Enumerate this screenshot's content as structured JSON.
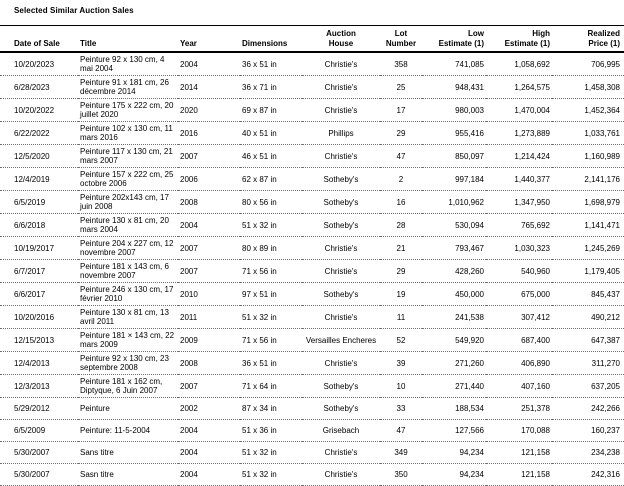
{
  "page": {
    "title": "Selected Similar Auction Sales"
  },
  "table": {
    "columns": [
      {
        "label": "Date of Sale",
        "align": "left"
      },
      {
        "label": "Title",
        "align": "left"
      },
      {
        "label": "Year",
        "align": "left"
      },
      {
        "label": "Dimensions",
        "align": "left"
      },
      {
        "label": "Auction\nHouse",
        "align": "center"
      },
      {
        "label": "Lot\nNumber",
        "align": "center"
      },
      {
        "label": "Low\nEstimate (1)",
        "align": "right"
      },
      {
        "label": "High\nEstimate (1)",
        "align": "right"
      },
      {
        "label": "Realized\nPrice (1)",
        "align": "right"
      }
    ],
    "field_names": [
      "date_of_sale",
      "title",
      "year",
      "dimensions",
      "auction_house",
      "lot_number",
      "low_estimate",
      "high_estimate",
      "realized_price"
    ],
    "rows": [
      [
        "10/20/2023",
        "Peinture 92 x 130 cm, 4 mai 2004",
        "2004",
        "36 x 51 in",
        "Christie's",
        "358",
        "741,085",
        "1,058,692",
        "706,995"
      ],
      [
        "6/28/2023",
        "Peinture 91 x 181 cm, 26 décembre 2014",
        "2014",
        "36 x 71 in",
        "Christie's",
        "25",
        "948,431",
        "1,264,575",
        "1,458,308"
      ],
      [
        "10/20/2022",
        "Peinture 175 x 222 cm, 20 juillet 2020",
        "2020",
        "69 x 87 in",
        "Christie's",
        "17",
        "980,003",
        "1,470,004",
        "1,452,364"
      ],
      [
        "6/22/2022",
        "Peinture 102 x 130 cm, 11 mars 2016",
        "2016",
        "40 x 51 in",
        "Phillips",
        "29",
        "955,416",
        "1,273,889",
        "1,033,761"
      ],
      [
        "12/5/2020",
        "Peinture 117 x 130 cm, 21 mars 2007",
        "2007",
        "46 x 51 in",
        "Christie's",
        "47",
        "850,097",
        "1,214,424",
        "1,160,989"
      ],
      [
        "12/4/2019",
        "Peinture 157 x 222 cm, 25 octobre 2006",
        "2006",
        "62 x 87 in",
        "Sotheby's",
        "2",
        "997,184",
        "1,440,377",
        "2,141,176"
      ],
      [
        "6/5/2019",
        "Peinture 202x143 cm, 17 juin 2008",
        "2008",
        "80 x 56 in",
        "Sotheby's",
        "16",
        "1,010,962",
        "1,347,950",
        "1,698,979"
      ],
      [
        "6/6/2018",
        "Peinture 130 x 81 cm, 20 mars 2004",
        "2004",
        "51 x 32 in",
        "Sotheby's",
        "28",
        "530,094",
        "765,692",
        "1,141,471"
      ],
      [
        "10/19/2017",
        "Peinture 204 x 227 cm, 12 novembre 2007",
        "2007",
        "80 x 89 in",
        "Christie's",
        "21",
        "793,467",
        "1,030,323",
        "1,245,269"
      ],
      [
        "6/7/2017",
        "Peinture 181 x 143 cm, 6 novembre 2007",
        "2007",
        "71 x 56 in",
        "Christie's",
        "29",
        "428,260",
        "540,960",
        "1,179,405"
      ],
      [
        "6/6/2017",
        "Peinture 246 x 130 cm, 17 février 2010",
        "2010",
        "97 x 51 in",
        "Sotheby's",
        "19",
        "450,000",
        "675,000",
        "845,437"
      ],
      [
        "10/20/2016",
        "Peinture 130 x 81 cm, 13 avril 2011",
        "2011",
        "51 x 32 in",
        "Christie's",
        "11",
        "241,538",
        "307,412",
        "490,212"
      ],
      [
        "12/15/2013",
        "Peinture 181 × 143 cm, 22 mars 2009",
        "2009",
        "71 x 56 in",
        "Versailles Encheres",
        "52",
        "549,920",
        "687,400",
        "647,387"
      ],
      [
        "12/4/2013",
        "Peinture 92 x 130 cm, 23 septembre 2008",
        "2008",
        "36 x 51 in",
        "Christie's",
        "39",
        "271,260",
        "406,890",
        "311,270"
      ],
      [
        "12/3/2013",
        "Peinture 181 x 162 cm, Diptyque, 6 Juin 2007",
        "2007",
        "71 x 64 in",
        "Sotheby's",
        "10",
        "271,440",
        "407,160",
        "637,205"
      ],
      [
        "5/29/2012",
        "Peinture",
        "2002",
        "87 x 34 in",
        "Sotheby's",
        "33",
        "188,534",
        "251,378",
        "242,266"
      ],
      [
        "6/5/2009",
        "Peinture: 11-5-2004",
        "2004",
        "51 x 36 in",
        "Grisebach",
        "47",
        "127,566",
        "170,088",
        "160,237"
      ],
      [
        "5/30/2007",
        "Sans titre",
        "2004",
        "51 x 32 in",
        "Christie's",
        "349",
        "94,234",
        "121,158",
        "234,238"
      ],
      [
        "5/30/2007",
        "Sasn titre",
        "2004",
        "51 x 32 in",
        "Christie's",
        "350",
        "94,234",
        "121,158",
        "242,316"
      ]
    ]
  }
}
